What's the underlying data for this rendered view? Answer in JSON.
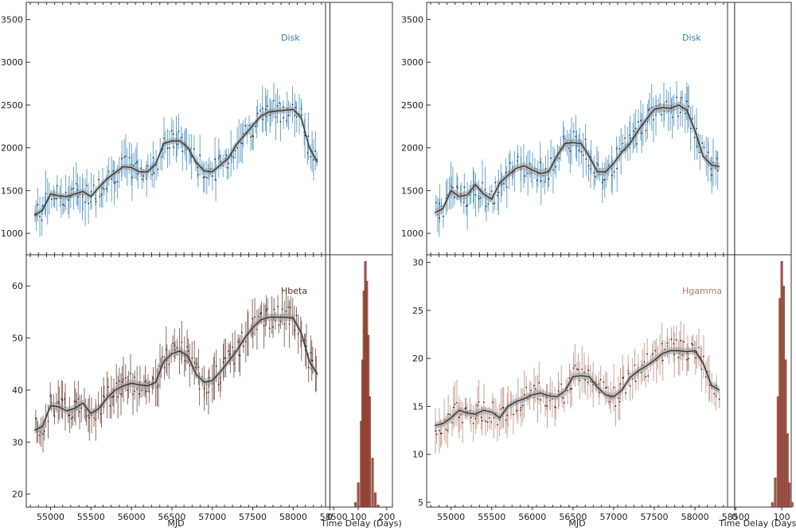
{
  "colors": {
    "disk": "#2b7fb8",
    "hbeta": "#5a2e1e",
    "hgamma": "#b07b68",
    "model": "#333333",
    "band": "#9a9a9a",
    "hist": "#8b3a2a"
  },
  "chart_data": [
    {
      "type": "line",
      "panel": "left-top",
      "legend": "Disk",
      "legend_color_key": "disk",
      "xlim": [
        54700,
        58400
      ],
      "ylim": [
        750,
        3700
      ],
      "yticks": [
        "1000",
        "1500",
        "2000",
        "2500",
        "3000",
        "3500"
      ],
      "ytick_values": [
        1000,
        1500,
        2000,
        2500,
        3000,
        3500
      ],
      "xlabel": "",
      "model_x": [
        54800,
        54900,
        55000,
        55100,
        55200,
        55300,
        55400,
        55500,
        55600,
        55700,
        55800,
        55900,
        56000,
        56100,
        56200,
        56300,
        56400,
        56500,
        56600,
        56700,
        56800,
        56900,
        57000,
        57100,
        57200,
        57300,
        57400,
        57500,
        57600,
        57700,
        57800,
        57900,
        58000,
        58100,
        58200,
        58300
      ],
      "model_y": [
        1210,
        1270,
        1460,
        1440,
        1430,
        1460,
        1490,
        1430,
        1540,
        1640,
        1710,
        1780,
        1770,
        1720,
        1720,
        1810,
        2050,
        2080,
        2080,
        2000,
        1830,
        1730,
        1720,
        1800,
        1880,
        2040,
        2150,
        2260,
        2370,
        2420,
        2430,
        2440,
        2450,
        2350,
        2000,
        1830
      ],
      "band_width": 35
    },
    {
      "type": "line",
      "panel": "left-bottom",
      "legend": "Hbeta",
      "legend_color_key": "hbeta",
      "xlim": [
        54700,
        58400
      ],
      "ylim": [
        17.5,
        66
      ],
      "yticks": [
        "20",
        "30",
        "40",
        "50",
        "60"
      ],
      "ytick_values": [
        20,
        30,
        40,
        50,
        60
      ],
      "xticks": [
        "55000",
        "55500",
        "56000",
        "56500",
        "57000",
        "57500",
        "58000",
        "58500"
      ],
      "xtick_values": [
        55000,
        55500,
        56000,
        56500,
        57000,
        57500,
        58000,
        58500
      ],
      "xlabel": "MJD",
      "model_x": [
        54800,
        54900,
        55000,
        55100,
        55200,
        55300,
        55400,
        55500,
        55600,
        55700,
        55800,
        55900,
        56000,
        56100,
        56200,
        56300,
        56400,
        56500,
        56600,
        56700,
        56800,
        56900,
        57000,
        57100,
        57200,
        57300,
        57400,
        57500,
        57600,
        57700,
        57800,
        57900,
        58000,
        58100,
        58200,
        58300
      ],
      "model_y": [
        32.3,
        33,
        37,
        36.8,
        36,
        36.5,
        37.5,
        35.5,
        36.5,
        38.5,
        40,
        40.8,
        41.3,
        41,
        40.8,
        41.5,
        45.5,
        47,
        47.5,
        46.5,
        43,
        41.5,
        41.8,
        43.5,
        45.5,
        47.5,
        50,
        52,
        53.5,
        54,
        54,
        54,
        53.8,
        51,
        45.5,
        43
      ],
      "band_width": 0.7
    },
    {
      "type": "line",
      "panel": "right-top",
      "legend": "Disk",
      "legend_color_key": "disk",
      "xlim": [
        54700,
        58400
      ],
      "ylim": [
        750,
        3700
      ],
      "yticks": [
        "1000",
        "1500",
        "2000",
        "2500",
        "3000",
        "3500"
      ],
      "ytick_values": [
        1000,
        1500,
        2000,
        2500,
        3000,
        3500
      ],
      "xlabel": "",
      "model_x": [
        54800,
        54900,
        55000,
        55100,
        55200,
        55300,
        55400,
        55500,
        55600,
        55700,
        55800,
        55900,
        56000,
        56100,
        56200,
        56300,
        56400,
        56500,
        56600,
        56700,
        56800,
        56900,
        57000,
        57100,
        57200,
        57300,
        57400,
        57500,
        57600,
        57700,
        57800,
        57900,
        58000,
        58100,
        58200,
        58300
      ],
      "model_y": [
        1240,
        1290,
        1500,
        1430,
        1450,
        1570,
        1460,
        1400,
        1590,
        1680,
        1760,
        1790,
        1740,
        1700,
        1720,
        1900,
        2050,
        2060,
        2050,
        1900,
        1720,
        1720,
        1820,
        1950,
        2050,
        2200,
        2330,
        2450,
        2470,
        2460,
        2500,
        2440,
        2200,
        1900,
        1800,
        1780
      ],
      "band_width": 45
    },
    {
      "type": "line",
      "panel": "right-bottom",
      "legend": "Hgamma",
      "legend_color_key": "hgamma",
      "xlim": [
        54700,
        58400
      ],
      "ylim": [
        4.5,
        30.8
      ],
      "yticks": [
        "5",
        "10",
        "15",
        "20",
        "25",
        "30"
      ],
      "ytick_values": [
        5,
        10,
        15,
        20,
        25,
        30
      ],
      "xticks": [
        "55000",
        "55500",
        "56000",
        "56500",
        "57000",
        "57500",
        "58000",
        "58500"
      ],
      "xtick_values": [
        55000,
        55500,
        56000,
        56500,
        57000,
        57500,
        58000,
        58500
      ],
      "xlabel": "MJD",
      "model_x": [
        54800,
        54900,
        55000,
        55100,
        55200,
        55300,
        55400,
        55500,
        55600,
        55700,
        55800,
        55900,
        56000,
        56100,
        56200,
        56300,
        56400,
        56500,
        56600,
        56700,
        56800,
        56900,
        57000,
        57100,
        57200,
        57300,
        57400,
        57500,
        57600,
        57700,
        57800,
        57900,
        58000,
        58100,
        58200,
        58300
      ],
      "model_y": [
        13,
        13.2,
        13.8,
        14.6,
        14.3,
        14.2,
        14.6,
        14.4,
        13.8,
        15,
        15.5,
        15.8,
        16.2,
        16.4,
        16.1,
        16,
        16.6,
        18.1,
        18.2,
        18.1,
        17,
        16.2,
        16,
        16.7,
        18,
        18.7,
        19.2,
        19.8,
        20.5,
        20.8,
        20.8,
        20.7,
        20.8,
        19.5,
        17.2,
        16.7
      ],
      "band_width": 0.35
    },
    {
      "type": "bar",
      "panel": "left-histogram",
      "xlabel": "Time Delay (Days)",
      "xlim": [
        -15,
        220
      ],
      "xticks": [
        "0",
        "100",
        "200"
      ],
      "xtick_values": [
        0,
        100,
        200
      ],
      "reference_line": 0,
      "bin_centers": [
        90,
        100,
        110,
        115,
        120,
        125,
        130,
        135,
        140,
        150,
        160,
        170
      ],
      "counts": [
        0.02,
        0.1,
        0.35,
        0.6,
        0.88,
        1.0,
        0.92,
        0.7,
        0.45,
        0.2,
        0.06,
        0.01
      ]
    },
    {
      "type": "bar",
      "panel": "right-histogram",
      "xlabel": "Time Delay (Days)",
      "xlim": [
        -15,
        120
      ],
      "xticks": [
        "0",
        "100"
      ],
      "xtick_values": [
        0,
        100
      ],
      "reference_line": 0,
      "bin_centers": [
        80,
        86,
        92,
        96,
        100,
        104,
        108,
        112,
        116,
        122
      ],
      "counts": [
        0.02,
        0.12,
        0.45,
        0.85,
        1.0,
        0.9,
        0.6,
        0.3,
        0.1,
        0.02
      ]
    }
  ]
}
